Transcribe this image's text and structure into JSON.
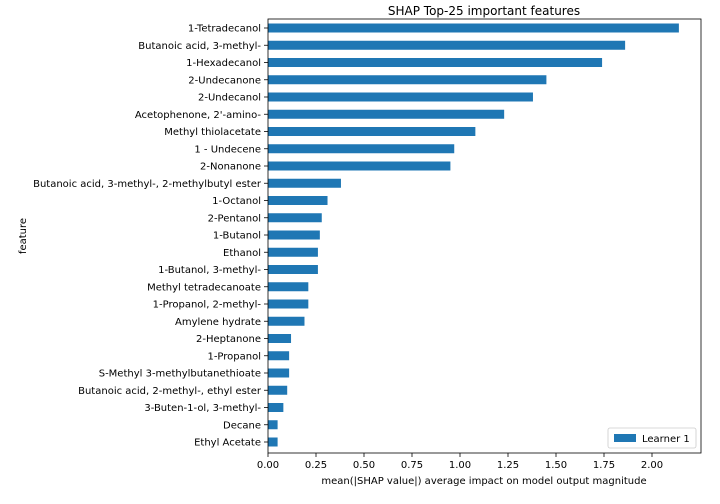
{
  "chart_data": {
    "type": "bar",
    "orientation": "horizontal",
    "title": "SHAP Top-25 important features",
    "xlabel": "mean(|SHAP value|) average impact on model output magnitude",
    "ylabel": "feature",
    "xlim": [
      0,
      2.25
    ],
    "xticks": [
      0,
      0.25,
      0.5,
      0.75,
      1.0,
      1.25,
      1.5,
      1.75,
      2.0
    ],
    "xtick_labels": [
      "0.00",
      "0.25",
      "0.50",
      "0.75",
      "1.00",
      "1.25",
      "1.50",
      "1.75",
      "2.00"
    ],
    "grid": false,
    "legend_position": "bottom-right",
    "series": [
      {
        "name": "Learner 1",
        "color": "#1f77b4"
      }
    ],
    "categories": [
      "1-Tetradecanol",
      "Butanoic acid, 3-methyl-",
      "1-Hexadecanol",
      "2-Undecanone",
      "2-Undecanol",
      "Acetophenone, 2'-amino-",
      "Methyl thiolacetate",
      "1 - Undecene",
      "2-Nonanone",
      "Butanoic acid, 3-methyl-, 2-methylbutyl ester",
      "1-Octanol",
      "2-Pentanol",
      "1-Butanol",
      "Ethanol",
      "1-Butanol, 3-methyl-",
      "Methyl tetradecanoate",
      "1-Propanol, 2-methyl-",
      "Amylene hydrate",
      "2-Heptanone",
      "1-Propanol",
      "S-Methyl 3-methylbutanethioate",
      "Butanoic acid, 2-methyl-, ethyl ester",
      "3-Buten-1-ol, 3-methyl-",
      "Decane",
      "Ethyl Acetate"
    ],
    "values": [
      2.14,
      1.86,
      1.74,
      1.45,
      1.38,
      1.23,
      1.08,
      0.97,
      0.95,
      0.38,
      0.31,
      0.28,
      0.27,
      0.26,
      0.26,
      0.21,
      0.21,
      0.19,
      0.12,
      0.11,
      0.11,
      0.1,
      0.08,
      0.05,
      0.05
    ]
  }
}
